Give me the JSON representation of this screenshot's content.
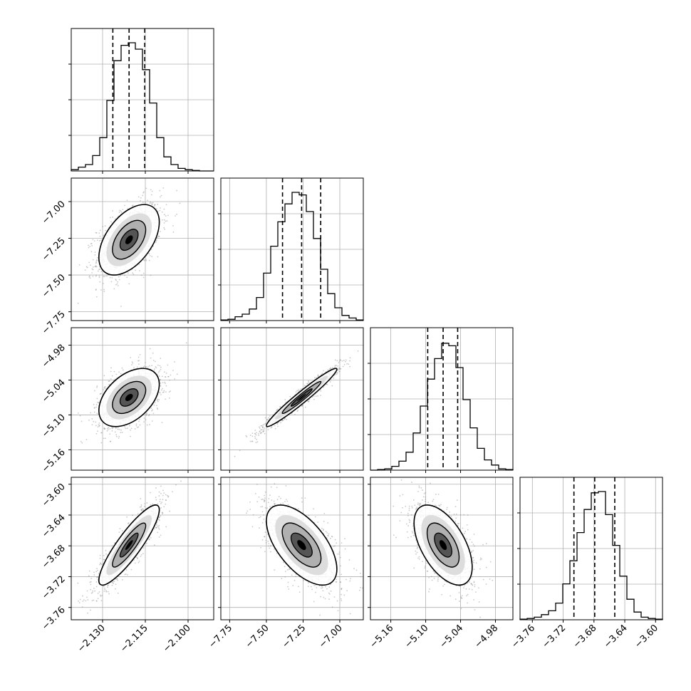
{
  "chart_data": {
    "type": "corner",
    "grid": true,
    "colors": {
      "line": "#000000",
      "grid": "#b0b0b0",
      "scatter": "#8a8a8a"
    },
    "parameters": [
      {
        "range": [
          -2.141,
          -2.091
        ],
        "ticks": [
          -2.13,
          -2.115,
          -2.1
        ],
        "tick_labels": [
          "−2.130",
          "−2.115",
          "−2.100"
        ],
        "quantiles": [
          -2.1264,
          -2.1207,
          -2.1152
        ],
        "hist": [
          0.01,
          0.03,
          0.05,
          0.12,
          0.26,
          0.55,
          0.86,
          0.98,
          1.0,
          0.95,
          0.79,
          0.53,
          0.26,
          0.11,
          0.05,
          0.02,
          0.01,
          0.004,
          0,
          0
        ]
      },
      {
        "range": [
          -7.81,
          -6.84
        ],
        "ticks": [
          -7.75,
          -7.5,
          -7.25,
          -7.0
        ],
        "tick_labels": [
          "−7.75",
          "−7.50",
          "−7.25",
          "−7.00"
        ],
        "quantiles": [
          -7.39,
          -7.26,
          -7.13
        ],
        "hist": [
          0.005,
          0.01,
          0.03,
          0.05,
          0.09,
          0.18,
          0.37,
          0.58,
          0.77,
          0.91,
          1.0,
          0.98,
          0.85,
          0.64,
          0.4,
          0.21,
          0.1,
          0.04,
          0.02,
          0.005
        ]
      },
      {
        "range": [
          -5.195,
          -4.95
        ],
        "ticks": [
          -5.16,
          -5.1,
          -5.04,
          -4.98
        ],
        "tick_labels": [
          "−5.16",
          "−5.10",
          "−5.04",
          "−4.98"
        ],
        "quantiles": [
          -5.0965,
          -5.07,
          -5.045
        ],
        "hist": [
          0,
          0.005,
          0.01,
          0.03,
          0.07,
          0.14,
          0.29,
          0.5,
          0.71,
          0.87,
          0.99,
          0.97,
          0.8,
          0.55,
          0.33,
          0.17,
          0.08,
          0.04,
          0.01,
          0.005
        ]
      },
      {
        "range": [
          -3.776,
          -3.591
        ],
        "ticks": [
          -3.76,
          -3.72,
          -3.68,
          -3.64,
          -3.6
        ],
        "tick_labels": [
          "−3.76",
          "−3.72",
          "−3.68",
          "−3.64",
          "−3.60"
        ],
        "quantiles": [
          -3.706,
          -3.679,
          -3.653
        ],
        "hist": [
          0.005,
          0.01,
          0.02,
          0.04,
          0.07,
          0.13,
          0.28,
          0.46,
          0.68,
          0.86,
          0.99,
          1.0,
          0.82,
          0.58,
          0.34,
          0.16,
          0.06,
          0.02,
          0.01,
          0.005
        ]
      }
    ],
    "pairs": [
      {
        "row": 1,
        "col": 0,
        "center": [
          -2.1207,
          -7.26
        ],
        "sd": [
          0.0053,
          0.12
        ],
        "rho": 0.5
      },
      {
        "row": 2,
        "col": 0,
        "center": [
          -2.1207,
          -5.07
        ],
        "sd": [
          0.0053,
          0.025
        ],
        "rho": 0.45
      },
      {
        "row": 2,
        "col": 1,
        "center": [
          -7.26,
          -5.07
        ],
        "sd": [
          0.12,
          0.025
        ],
        "rho": 0.97
      },
      {
        "row": 3,
        "col": 0,
        "center": [
          -2.1207,
          -3.679
        ],
        "sd": [
          0.0053,
          0.026
        ],
        "rho": 0.88
      },
      {
        "row": 3,
        "col": 1,
        "center": [
          -7.26,
          -3.679
        ],
        "sd": [
          0.12,
          0.026
        ],
        "rho": -0.6
      },
      {
        "row": 3,
        "col": 2,
        "center": [
          -5.07,
          -3.679
        ],
        "sd": [
          0.025,
          0.026
        ],
        "rho": -0.55
      }
    ]
  }
}
